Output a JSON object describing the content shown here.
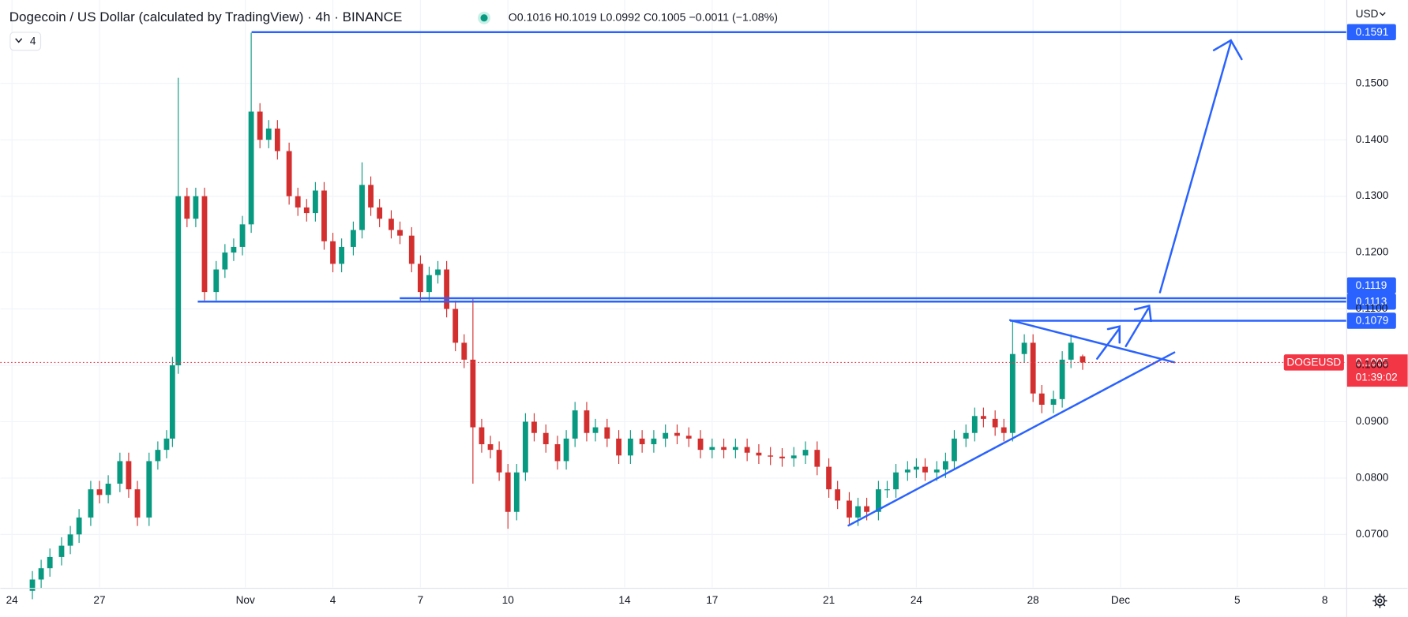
{
  "chart_data": {
    "type": "candlestick",
    "title": "Dogecoin / US Dollar (calculated by TradingView) · 4h · BINANCE",
    "ohlc_text": "O0.1016 H0.1019 L0.0992 C0.1005 −0.0011 (−1.08%)",
    "currency": "USD",
    "indicator_count": 4,
    "up_color": "#089981",
    "down_color": "#d32f2f",
    "level_color": "#2962ff",
    "grid": true,
    "xlim": [
      -0.4,
      45.75
    ],
    "ylim": [
      0.0606,
      0.1648
    ],
    "xticks": [
      {
        "value": 0,
        "label": "24"
      },
      {
        "value": 3,
        "label": "27"
      },
      {
        "value": 8,
        "label": "Nov"
      },
      {
        "value": 11,
        "label": "4"
      },
      {
        "value": 14,
        "label": "7"
      },
      {
        "value": 17,
        "label": "10"
      },
      {
        "value": 21,
        "label": "14"
      },
      {
        "value": 24,
        "label": "17"
      },
      {
        "value": 28,
        "label": "21"
      },
      {
        "value": 31,
        "label": "24"
      },
      {
        "value": 35,
        "label": "28"
      },
      {
        "value": 38,
        "label": "Dec"
      },
      {
        "value": 42,
        "label": "5"
      },
      {
        "value": 45,
        "label": "8"
      }
    ],
    "yticks": [
      {
        "value": 0.07,
        "label": "0.0700"
      },
      {
        "value": 0.08,
        "label": "0.0800"
      },
      {
        "value": 0.09,
        "label": "0.0900"
      },
      {
        "value": 0.1,
        "label": "0.1000"
      },
      {
        "value": 0.11,
        "label": "0.1100"
      },
      {
        "value": 0.12,
        "label": "0.1200"
      },
      {
        "value": 0.13,
        "label": "0.1300"
      },
      {
        "value": 0.14,
        "label": "0.1400"
      },
      {
        "value": 0.15,
        "label": "0.1500"
      }
    ],
    "price_lines": [
      0.1591,
      0.1119,
      0.1113,
      0.1079
    ],
    "current": {
      "symbol": "DOGEUSD",
      "price": 0.1005,
      "countdown": "01:39:02",
      "color": "#f23645"
    },
    "x": [
      0.7,
      1.0,
      1.3,
      1.7,
      2.0,
      2.3,
      2.7,
      3.0,
      3.3,
      3.7,
      4.0,
      4.3,
      4.7,
      5.0,
      5.3,
      5.5,
      5.7,
      6.0,
      6.3,
      6.6,
      7.0,
      7.3,
      7.6,
      7.9,
      8.2,
      8.5,
      8.8,
      9.1,
      9.5,
      9.8,
      10.1,
      10.4,
      10.7,
      11.0,
      11.3,
      11.7,
      12.0,
      12.3,
      12.6,
      13.0,
      13.3,
      13.7,
      14.0,
      14.3,
      14.6,
      14.9,
      15.2,
      15.5,
      15.8,
      16.1,
      16.4,
      16.7,
      17.0,
      17.3,
      17.6,
      17.9,
      18.3,
      18.7,
      19.0,
      19.3,
      19.7,
      20.0,
      20.4,
      20.8,
      21.2,
      21.6,
      22.0,
      22.4,
      22.8,
      23.2,
      23.6,
      24.0,
      24.4,
      24.8,
      25.2,
      25.6,
      26.0,
      26.4,
      26.8,
      27.2,
      27.6,
      28.0,
      28.3,
      28.7,
      29.0,
      29.3,
      29.7,
      30.0,
      30.3,
      30.7,
      31.0,
      31.3,
      31.7,
      32.0,
      32.3,
      32.7,
      33.0,
      33.3,
      33.7,
      34.0,
      34.3,
      34.7,
      35.0,
      35.3,
      35.7,
      36.0,
      36.3,
      36.7
    ],
    "open": [
      0.06,
      0.062,
      0.064,
      0.066,
      0.068,
      0.07,
      0.073,
      0.078,
      0.077,
      0.079,
      0.083,
      0.078,
      0.073,
      0.083,
      0.085,
      0.087,
      0.1,
      0.13,
      0.126,
      0.13,
      0.113,
      0.117,
      0.12,
      0.121,
      0.125,
      0.145,
      0.14,
      0.142,
      0.138,
      0.13,
      0.128,
      0.127,
      0.131,
      0.122,
      0.118,
      0.121,
      0.124,
      0.132,
      0.128,
      0.126,
      0.124,
      0.123,
      0.118,
      0.113,
      0.116,
      0.117,
      0.11,
      0.104,
      0.101,
      0.089,
      0.086,
      0.085,
      0.081,
      0.074,
      0.081,
      0.09,
      0.088,
      0.086,
      0.083,
      0.087,
      0.092,
      0.088,
      0.089,
      0.087,
      0.084,
      0.087,
      0.086,
      0.087,
      0.088,
      0.0875,
      0.087,
      0.085,
      0.0855,
      0.085,
      0.0855,
      0.0845,
      0.084,
      0.0838,
      0.0835,
      0.084,
      0.085,
      0.082,
      0.078,
      0.076,
      0.073,
      0.075,
      0.074,
      0.078,
      0.078,
      0.081,
      0.0815,
      0.082,
      0.081,
      0.0815,
      0.083,
      0.087,
      0.088,
      0.091,
      0.0905,
      0.089,
      0.088,
      0.102,
      0.104,
      0.095,
      0.093,
      0.094,
      0.101,
      0.1016
    ],
    "high": [
      0.0635,
      0.0655,
      0.0675,
      0.0695,
      0.0715,
      0.0745,
      0.0795,
      0.0795,
      0.0805,
      0.0845,
      0.0845,
      0.0795,
      0.0845,
      0.0865,
      0.0885,
      0.1015,
      0.151,
      0.1315,
      0.1315,
      0.1315,
      0.1185,
      0.1215,
      0.1225,
      0.1265,
      0.159,
      0.1465,
      0.1435,
      0.1435,
      0.1395,
      0.1315,
      0.1295,
      0.1325,
      0.1325,
      0.1235,
      0.1225,
      0.1255,
      0.136,
      0.1335,
      0.1295,
      0.1275,
      0.1255,
      0.1245,
      0.1195,
      0.1175,
      0.1185,
      0.1185,
      0.1115,
      0.1055,
      0.112,
      0.0905,
      0.0875,
      0.0865,
      0.0825,
      0.0825,
      0.0915,
      0.0915,
      0.0895,
      0.0875,
      0.0885,
      0.0935,
      0.0935,
      0.0905,
      0.0905,
      0.0885,
      0.0885,
      0.0885,
      0.0885,
      0.0895,
      0.0895,
      0.089,
      0.0885,
      0.087,
      0.087,
      0.087,
      0.087,
      0.086,
      0.0855,
      0.0853,
      0.0855,
      0.0865,
      0.0865,
      0.0835,
      0.0795,
      0.0775,
      0.0765,
      0.0765,
      0.0795,
      0.0795,
      0.0825,
      0.083,
      0.0835,
      0.0835,
      0.083,
      0.0845,
      0.0885,
      0.0895,
      0.0925,
      0.0925,
      0.092,
      0.0905,
      0.1078,
      0.1055,
      0.1055,
      0.0965,
      0.0955,
      0.1025,
      0.1055,
      0.1019
    ],
    "low": [
      0.0585,
      0.0605,
      0.0625,
      0.0645,
      0.0665,
      0.0685,
      0.0715,
      0.0755,
      0.0755,
      0.0775,
      0.0765,
      0.0715,
      0.0715,
      0.0815,
      0.0835,
      0.0855,
      0.0985,
      0.1245,
      0.1245,
      0.1115,
      0.1115,
      0.1155,
      0.1185,
      0.1195,
      0.1235,
      0.1385,
      0.1385,
      0.1365,
      0.1285,
      0.1265,
      0.1255,
      0.1255,
      0.1205,
      0.1165,
      0.1165,
      0.1195,
      0.1225,
      0.1265,
      0.1245,
      0.1225,
      0.1215,
      0.1165,
      0.1115,
      0.1115,
      0.1145,
      0.1085,
      0.1025,
      0.0995,
      0.079,
      0.0845,
      0.0835,
      0.0795,
      0.071,
      0.0725,
      0.0795,
      0.0865,
      0.0845,
      0.0815,
      0.0815,
      0.0855,
      0.0865,
      0.0865,
      0.0855,
      0.0825,
      0.0825,
      0.0845,
      0.0845,
      0.0855,
      0.086,
      0.0855,
      0.0835,
      0.0835,
      0.0835,
      0.0835,
      0.083,
      0.0825,
      0.0823,
      0.082,
      0.082,
      0.0825,
      0.0805,
      0.0765,
      0.0745,
      0.0715,
      0.0715,
      0.0725,
      0.0725,
      0.0765,
      0.0765,
      0.0795,
      0.08,
      0.0795,
      0.0795,
      0.08,
      0.0815,
      0.0855,
      0.0865,
      0.089,
      0.0875,
      0.0865,
      0.0865,
      0.1005,
      0.0935,
      0.0915,
      0.0915,
      0.0925,
      0.0995,
      0.0992
    ],
    "close": [
      0.062,
      0.064,
      0.066,
      0.068,
      0.07,
      0.073,
      0.078,
      0.077,
      0.079,
      0.083,
      0.078,
      0.073,
      0.083,
      0.085,
      0.087,
      0.1,
      0.13,
      0.126,
      0.13,
      0.113,
      0.117,
      0.12,
      0.121,
      0.125,
      0.145,
      0.14,
      0.142,
      0.138,
      0.13,
      0.128,
      0.127,
      0.131,
      0.122,
      0.118,
      0.121,
      0.124,
      0.132,
      0.128,
      0.126,
      0.124,
      0.123,
      0.118,
      0.113,
      0.116,
      0.117,
      0.11,
      0.104,
      0.101,
      0.089,
      0.086,
      0.085,
      0.081,
      0.074,
      0.081,
      0.09,
      0.088,
      0.086,
      0.083,
      0.087,
      0.092,
      0.088,
      0.089,
      0.087,
      0.084,
      0.087,
      0.086,
      0.087,
      0.088,
      0.0875,
      0.087,
      0.085,
      0.0855,
      0.085,
      0.0855,
      0.0845,
      0.084,
      0.0838,
      0.0835,
      0.084,
      0.085,
      0.082,
      0.078,
      0.076,
      0.073,
      0.075,
      0.074,
      0.078,
      0.078,
      0.081,
      0.0815,
      0.082,
      0.081,
      0.0815,
      0.083,
      0.087,
      0.088,
      0.091,
      0.0905,
      0.089,
      0.088,
      0.102,
      0.104,
      0.095,
      0.093,
      0.094,
      0.101,
      0.104,
      0.1005
    ]
  }
}
